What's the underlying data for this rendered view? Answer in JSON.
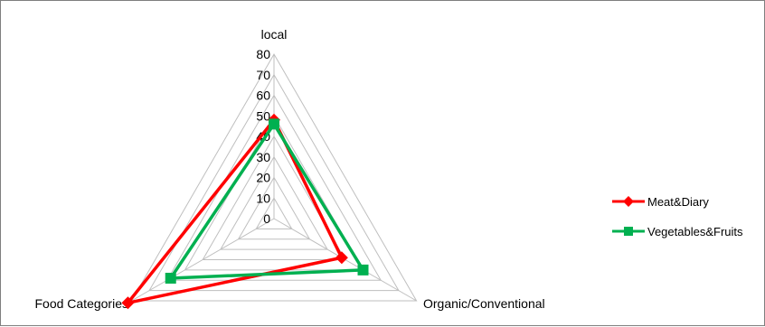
{
  "chart_data": {
    "type": "radar",
    "axes": [
      "local",
      "Organic/Conventional",
      "Food Categories"
    ],
    "ticks": [
      0,
      10,
      20,
      30,
      40,
      50,
      60,
      70,
      80
    ],
    "rlim": [
      0,
      80
    ],
    "grid": true,
    "legend_position": "right",
    "series": [
      {
        "name": "Meat&Diary",
        "values": [
          48,
          38,
          82
        ],
        "color": "#ff0000",
        "marker": "diamond"
      },
      {
        "name": "Vegetables&Fruits",
        "values": [
          46,
          50,
          58
        ],
        "color": "#00b050",
        "marker": "square"
      }
    ]
  }
}
